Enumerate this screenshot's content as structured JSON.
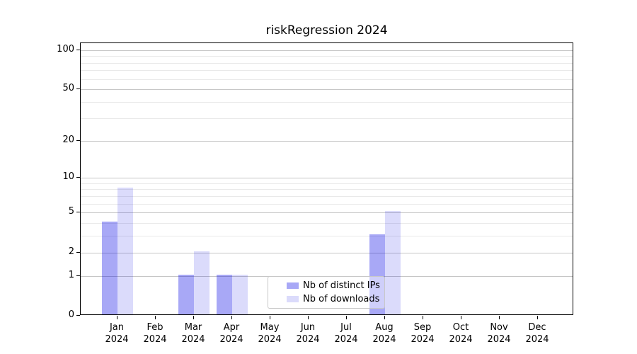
{
  "chart_data": {
    "type": "bar",
    "title": "riskRegression 2024",
    "categories": [
      "Jan",
      "Feb",
      "Mar",
      "Apr",
      "May",
      "Jun",
      "Jul",
      "Aug",
      "Sep",
      "Oct",
      "Nov",
      "Dec"
    ],
    "x_year_label": "2024",
    "series": [
      {
        "name": "Nb of distinct IPs",
        "color": "rgba(0,0,230,0.34)",
        "values": [
          4,
          0,
          1,
          1,
          0,
          0,
          0,
          3,
          0,
          0,
          0,
          0
        ]
      },
      {
        "name": "Nb of downloads",
        "color": "rgba(0,0,230,0.14)",
        "values": [
          8,
          0,
          2,
          1,
          0,
          0,
          0,
          5,
          0,
          0,
          0,
          0
        ]
      }
    ],
    "y_scale": "log1p",
    "y_axis_ticks": [
      0,
      1,
      2,
      5,
      10,
      20,
      50,
      100
    ],
    "y_minor_gridlines": [
      3,
      4,
      6,
      7,
      8,
      9,
      30,
      40,
      60,
      70,
      80,
      90
    ],
    "ylim": [
      0,
      113
    ],
    "grid": "horizontal",
    "legend_position": "lower-center",
    "colors": {
      "major_grid": "#c6c6c6",
      "minor_grid": "#e9e9e9",
      "spine": "#000000",
      "text": "#000000"
    }
  }
}
